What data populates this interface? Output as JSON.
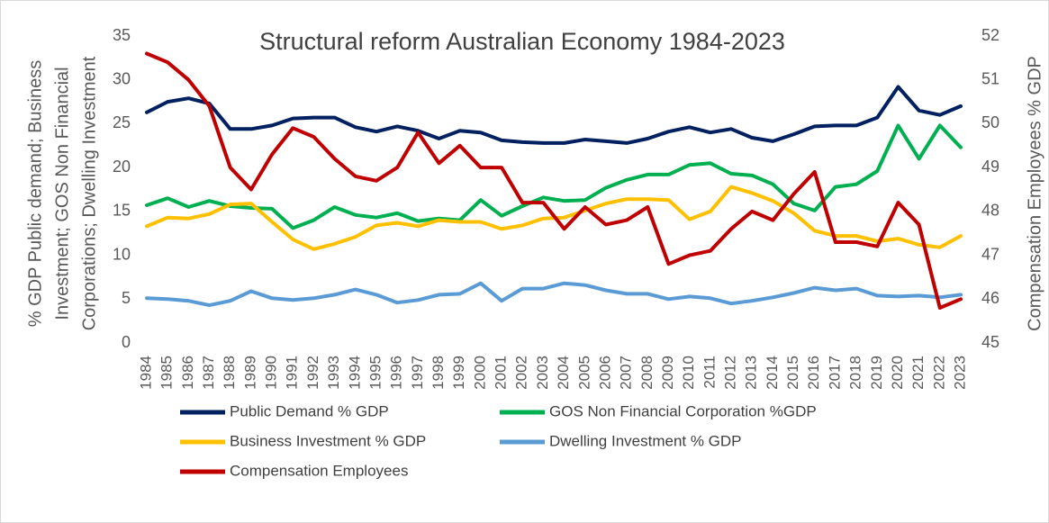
{
  "chart_data": {
    "type": "line",
    "title": "Structural reform Australian Economy 1984-2023",
    "ylabel": [
      "% GDP Public demand; Business",
      "Investment; GOS Non Financial",
      "Corporations; Dwelling Investment"
    ],
    "y2label": "Compensation Employees % GDP",
    "categories": [
      "1984",
      "1985",
      "1986",
      "1987",
      "1988",
      "1989",
      "1990",
      "1991",
      "1992",
      "1993",
      "1994",
      "1995",
      "1996",
      "1997",
      "1998",
      "1999",
      "2000",
      "2001",
      "2002",
      "2003",
      "2004",
      "2005",
      "2006",
      "2007",
      "2008",
      "2009",
      "2010",
      "2011",
      "2012",
      "2013",
      "2014",
      "2015",
      "2016",
      "2017",
      "2018",
      "2019",
      "2020",
      "2021",
      "2022",
      "2023"
    ],
    "ylim": [
      0,
      35
    ],
    "yticks": [
      0,
      5,
      10,
      15,
      20,
      25,
      30,
      35
    ],
    "y2lim": [
      45,
      52
    ],
    "y2ticks": [
      45,
      46,
      47,
      48,
      49,
      50,
      51,
      52
    ],
    "series": [
      {
        "name": "Public Demand % GDP",
        "color": "#002060",
        "values": [
          26.3,
          27.5,
          27.9,
          27.3,
          24.4,
          24.4,
          24.8,
          25.6,
          25.7,
          25.7,
          24.6,
          24.1,
          24.7,
          24.2,
          23.3,
          24.2,
          24.0,
          23.1,
          22.9,
          22.8,
          22.8,
          23.2,
          23.0,
          22.8,
          23.3,
          24.1,
          24.6,
          24.0,
          24.4,
          23.4,
          23.0,
          23.8,
          24.7,
          24.8,
          24.8,
          25.7,
          29.2,
          26.5,
          26.0,
          27.0
        ]
      },
      {
        "name": "GOS Non Financial Corporation %GDP",
        "color": "#00b050",
        "values": [
          15.7,
          16.5,
          15.5,
          16.2,
          15.6,
          15.4,
          15.3,
          13.1,
          14.0,
          15.5,
          14.6,
          14.3,
          14.8,
          13.9,
          14.2,
          14.0,
          16.3,
          14.5,
          15.6,
          16.6,
          16.2,
          16.3,
          17.7,
          18.6,
          19.2,
          19.2,
          20.3,
          20.5,
          19.3,
          19.1,
          18.1,
          15.9,
          15.1,
          17.8,
          18.1,
          19.6,
          24.8,
          21.0,
          24.8,
          22.3
        ]
      },
      {
        "name": "Business Investment % GDP",
        "color": "#ffc000",
        "values": [
          13.3,
          14.3,
          14.2,
          14.7,
          15.8,
          15.9,
          13.8,
          11.8,
          10.7,
          11.3,
          12.1,
          13.4,
          13.7,
          13.3,
          14.0,
          13.8,
          13.8,
          13.0,
          13.4,
          14.2,
          14.3,
          15.1,
          15.9,
          16.4,
          16.4,
          16.3,
          14.1,
          15.0,
          17.8,
          17.1,
          16.2,
          14.8,
          12.8,
          12.2,
          12.2,
          11.6,
          11.9,
          11.2,
          10.9,
          12.2
        ]
      },
      {
        "name": "Dwelling Investment % GDP",
        "color": "#5b9bd5",
        "values": [
          5.1,
          5.0,
          4.8,
          4.3,
          4.8,
          5.9,
          5.1,
          4.9,
          5.1,
          5.5,
          6.1,
          5.5,
          4.6,
          4.9,
          5.5,
          5.6,
          6.8,
          4.8,
          6.2,
          6.2,
          6.8,
          6.6,
          6.0,
          5.6,
          5.6,
          5.0,
          5.3,
          5.1,
          4.5,
          4.8,
          5.2,
          5.7,
          6.3,
          6.0,
          6.2,
          5.4,
          5.3,
          5.4,
          5.2,
          5.5
        ]
      },
      {
        "name": "Compensation Employees",
        "color": "#c00000",
        "axis": "y2",
        "values": [
          51.6,
          51.4,
          51.0,
          50.4,
          49.0,
          48.5,
          49.3,
          49.9,
          49.7,
          49.2,
          48.8,
          48.7,
          49.0,
          49.8,
          49.1,
          49.5,
          49.0,
          49.0,
          48.2,
          48.2,
          47.6,
          48.1,
          47.7,
          47.8,
          48.1,
          46.8,
          47.0,
          47.1,
          47.6,
          48.0,
          47.8,
          48.4,
          48.9,
          47.3,
          47.3,
          47.2,
          48.2,
          47.7,
          45.8,
          46.0
        ]
      }
    ]
  }
}
